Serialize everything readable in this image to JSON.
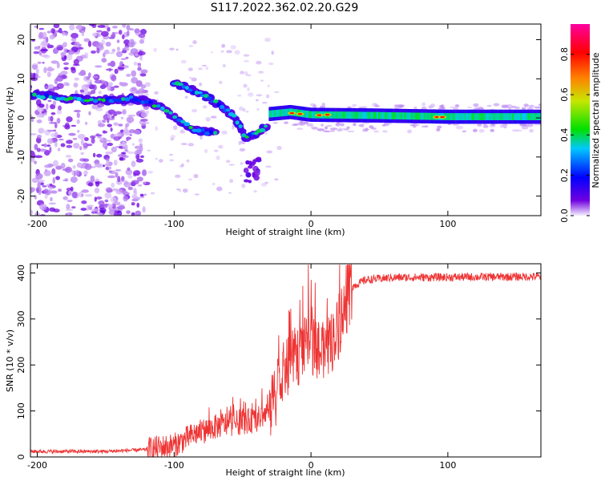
{
  "title": "S117.2022.362.02.20.G29",
  "chart_data": [
    {
      "type": "heatmap",
      "xlabel": "Height of straight line (km)",
      "ylabel": "Frequency (Hz)",
      "xlim": [
        -205,
        168
      ],
      "ylim": [
        -25,
        24
      ],
      "xticks": [
        -200,
        -100,
        0,
        100
      ],
      "xtick_labels": [
        "-200",
        "-100",
        "0",
        "100"
      ],
      "yticks": [
        -20,
        -10,
        0,
        10,
        20
      ],
      "ytick_labels": [
        "-20",
        "-10",
        "0",
        "10",
        "20"
      ],
      "colorbar": {
        "label": "Normalized spectral amplitude",
        "range": [
          0,
          0.95
        ],
        "ticks": [
          0.0,
          0.2,
          0.4,
          0.6,
          0.8
        ],
        "tick_labels": [
          "0.0",
          "0.2",
          "0.4",
          "0.6",
          "0.8"
        ],
        "colormap": [
          "#f5f0ff",
          "#7000e0",
          "#0000ff",
          "#00c8ff",
          "#00e000",
          "#c8e600",
          "#ff8000",
          "#ff0000",
          "#ff00a0"
        ]
      },
      "features": [
        {
          "name": "noise-region",
          "x_range": [
            -205,
            -120
          ],
          "y_range": [
            -25,
            24
          ]
        },
        {
          "name": "upper-branch",
          "points": [
            [
              -205,
              6
            ],
            [
              -180,
              5
            ],
            [
              -150,
              4.5
            ],
            [
              -130,
              5
            ],
            [
              -110,
              3
            ],
            [
              -95,
              -1
            ],
            [
              -85,
              -3
            ],
            [
              -70,
              -4
            ]
          ]
        },
        {
          "name": "lower-branch",
          "points": [
            [
              -100,
              9
            ],
            [
              -80,
              6
            ],
            [
              -65,
              3
            ],
            [
              -55,
              0
            ],
            [
              -48,
              -5
            ],
            [
              -40,
              -4
            ],
            [
              -32,
              -2
            ]
          ]
        },
        {
          "name": "carrier-line",
          "points": [
            [
              -30,
              1
            ],
            [
              -15,
              1.5
            ],
            [
              0,
              0.8
            ],
            [
              50,
              0.6
            ],
            [
              100,
              0.3
            ],
            [
              168,
              0.3
            ]
          ]
        }
      ]
    },
    {
      "type": "line",
      "xlabel": "Height of straight line (km)",
      "ylabel": "SNR (10 * v/v)",
      "xlim": [
        -205,
        168
      ],
      "ylim": [
        0,
        420
      ],
      "xticks": [
        -200,
        -100,
        0,
        100
      ],
      "xtick_labels": [
        "-200",
        "-100",
        "0",
        "100"
      ],
      "yticks": [
        0,
        100,
        200,
        300,
        400
      ],
      "ytick_labels": [
        "0",
        "100",
        "200",
        "300",
        "400"
      ],
      "color": "#ee3333",
      "trend": [
        [
          -205,
          12
        ],
        [
          -150,
          12
        ],
        [
          -120,
          16
        ],
        [
          -100,
          25
        ],
        [
          -85,
          50
        ],
        [
          -65,
          70
        ],
        [
          -40,
          80
        ],
        [
          -30,
          100
        ],
        [
          -20,
          180
        ],
        [
          -10,
          220
        ],
        [
          0,
          250
        ],
        [
          10,
          220
        ],
        [
          20,
          280
        ],
        [
          30,
          370
        ],
        [
          40,
          385
        ],
        [
          60,
          390
        ],
        [
          168,
          392
        ]
      ]
    }
  ]
}
